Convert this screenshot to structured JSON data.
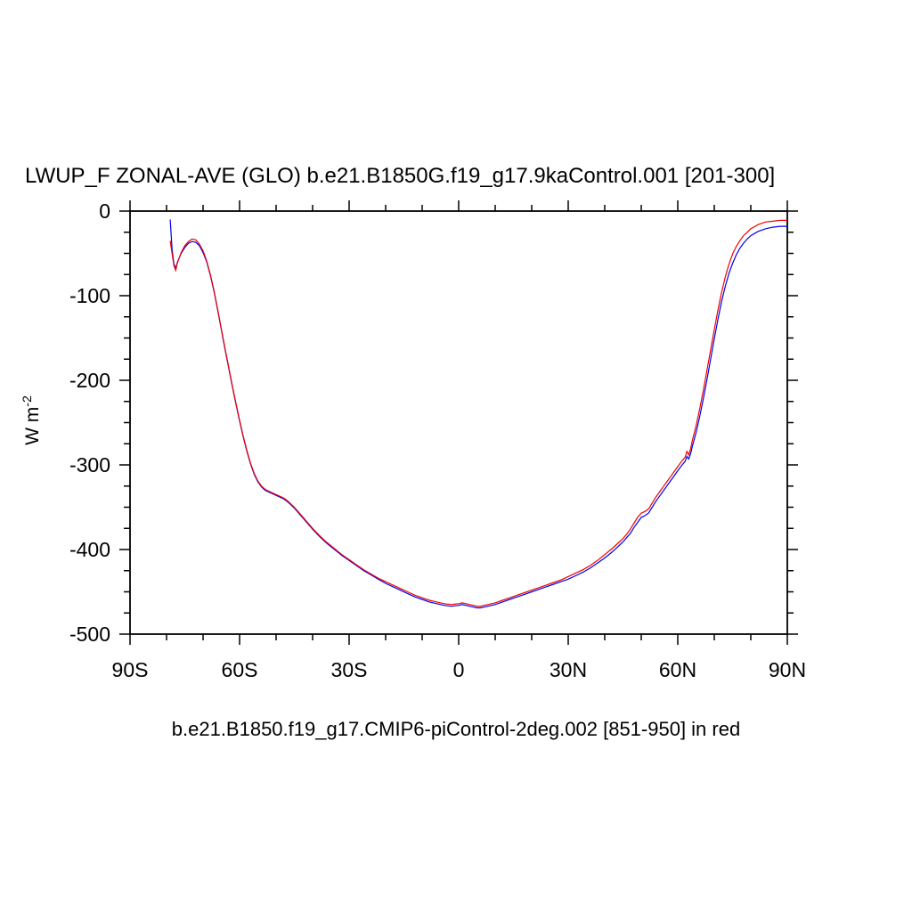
{
  "title": "LWUP_F ZONAL-AVE (GLO) b.e21.B1850G.f19_g17.9kaControl.001 [201-300]",
  "caption": "b.e21.B1850.f19_g17.CMIP6-piControl-2deg.002 [851-950] in red",
  "axis": {
    "ylabel_base": "W m",
    "ylabel_sup": "-2"
  },
  "chart_data": {
    "type": "line",
    "title": "LWUP_F ZONAL-AVE (GLO) b.e21.B1850G.f19_g17.9kaControl.001 [201-300]",
    "xlabel": "",
    "ylabel": "W m-2",
    "xlim": [
      -90,
      90
    ],
    "ylim": [
      -500,
      0
    ],
    "grid": false,
    "legend": "none",
    "x_ticks": [
      {
        "value": -90,
        "label": "90S"
      },
      {
        "value": -60,
        "label": "60S"
      },
      {
        "value": -30,
        "label": "30S"
      },
      {
        "value": 0,
        "label": "0"
      },
      {
        "value": 30,
        "label": "30N"
      },
      {
        "value": 60,
        "label": "60N"
      },
      {
        "value": 90,
        "label": "90N"
      }
    ],
    "y_ticks": [
      {
        "value": 0,
        "label": "0"
      },
      {
        "value": -100,
        "label": "-100"
      },
      {
        "value": -200,
        "label": "-200"
      },
      {
        "value": -300,
        "label": "-300"
      },
      {
        "value": -400,
        "label": "-400"
      },
      {
        "value": -500,
        "label": "-500"
      }
    ],
    "x_minor_step": 10,
    "y_minor_step": 25,
    "x": [
      -79,
      -78.5,
      -78,
      -77.5,
      -77,
      -76,
      -75,
      -74,
      -73,
      -72,
      -71,
      -70,
      -69,
      -68,
      -67,
      -66,
      -65,
      -64,
      -63,
      -62,
      -61,
      -60,
      -59,
      -58,
      -57,
      -56,
      -55,
      -54,
      -53,
      -52,
      -51,
      -50,
      -49,
      -48,
      -47,
      -46,
      -45,
      -44,
      -43,
      -42,
      -41,
      -40,
      -38,
      -36,
      -34,
      -32,
      -30,
      -28,
      -26,
      -24,
      -22,
      -20,
      -18,
      -16,
      -14,
      -12,
      -10,
      -8,
      -6,
      -4,
      -2,
      0,
      1,
      2,
      3,
      4,
      5,
      6,
      7,
      8,
      10,
      12,
      14,
      16,
      18,
      20,
      22,
      24,
      26,
      28,
      30,
      32,
      34,
      36,
      38,
      40,
      42,
      44,
      45,
      46,
      47,
      48,
      49,
      50,
      51,
      52,
      53,
      54,
      55,
      56,
      57,
      58,
      59,
      60,
      61,
      62,
      62.5,
      63,
      63.5,
      64,
      65,
      66,
      67,
      68,
      69,
      70,
      71,
      72,
      73,
      74,
      75,
      76,
      77,
      78,
      79,
      80,
      82,
      84,
      86,
      88,
      90
    ],
    "series": [
      {
        "id": "blue",
        "name": "b.e21.B1850G.f19_g17.9kaControl.001 [201-300]",
        "color": "#0000ee",
        "values": [
          -10,
          -45,
          -62,
          -68,
          -60,
          -50,
          -43,
          -38,
          -36,
          -37,
          -41,
          -49,
          -60,
          -76,
          -95,
          -117,
          -140,
          -163,
          -185,
          -207,
          -228,
          -248,
          -267,
          -284,
          -299,
          -311,
          -320,
          -326,
          -330,
          -332,
          -334,
          -336,
          -338,
          -340,
          -343,
          -347,
          -351,
          -356,
          -361,
          -366,
          -371,
          -376,
          -385,
          -393,
          -400,
          -407,
          -413,
          -419,
          -425,
          -430,
          -435,
          -440,
          -444,
          -448,
          -452,
          -456,
          -459,
          -462,
          -464,
          -466,
          -467,
          -466,
          -465,
          -466,
          -467,
          -468,
          -469,
          -469,
          -468,
          -467,
          -465,
          -462,
          -459,
          -456,
          -453,
          -450,
          -447,
          -444,
          -441,
          -438,
          -435,
          -431,
          -427,
          -422,
          -416,
          -410,
          -403,
          -395,
          -391,
          -386,
          -381,
          -374,
          -368,
          -362,
          -360,
          -357,
          -350,
          -343,
          -337,
          -331,
          -325,
          -319,
          -313,
          -307,
          -301,
          -296,
          -290,
          -293,
          -287,
          -278,
          -262,
          -243,
          -222,
          -199,
          -175,
          -151,
          -128,
          -107,
          -89,
          -74,
          -62,
          -52,
          -44,
          -38,
          -33,
          -29,
          -24,
          -21,
          -19,
          -18,
          -18
        ]
      },
      {
        "id": "red",
        "name": "b.e21.B1850.f19_g17.CMIP6-piControl-2deg.002 [851-950]",
        "color": "#ee0000",
        "values": [
          -35,
          -50,
          -64,
          -70,
          -61,
          -49,
          -41,
          -36,
          -33,
          -34,
          -39,
          -47,
          -59,
          -75,
          -94,
          -116,
          -139,
          -162,
          -184,
          -206,
          -227,
          -247,
          -266,
          -283,
          -298,
          -310,
          -319,
          -325,
          -329,
          -331,
          -333,
          -335,
          -337,
          -339,
          -342,
          -346,
          -350,
          -355,
          -360,
          -365,
          -370,
          -375,
          -384,
          -392,
          -399,
          -406,
          -412,
          -418,
          -424,
          -429,
          -434,
          -438,
          -442,
          -446,
          -450,
          -454,
          -457,
          -460,
          -462,
          -464,
          -465,
          -464,
          -463,
          -464,
          -465,
          -466,
          -467,
          -467,
          -466,
          -465,
          -463,
          -460,
          -457,
          -454,
          -451,
          -448,
          -445,
          -442,
          -439,
          -436,
          -432,
          -428,
          -424,
          -419,
          -413,
          -406,
          -399,
          -391,
          -387,
          -382,
          -376,
          -369,
          -362,
          -357,
          -355,
          -352,
          -345,
          -338,
          -332,
          -326,
          -320,
          -314,
          -308,
          -302,
          -296,
          -291,
          -284,
          -288,
          -281,
          -271,
          -254,
          -234,
          -212,
          -188,
          -164,
          -140,
          -117,
          -96,
          -78,
          -63,
          -51,
          -42,
          -35,
          -29,
          -25,
          -21,
          -16,
          -13,
          -12,
          -11,
          -11
        ]
      }
    ]
  }
}
